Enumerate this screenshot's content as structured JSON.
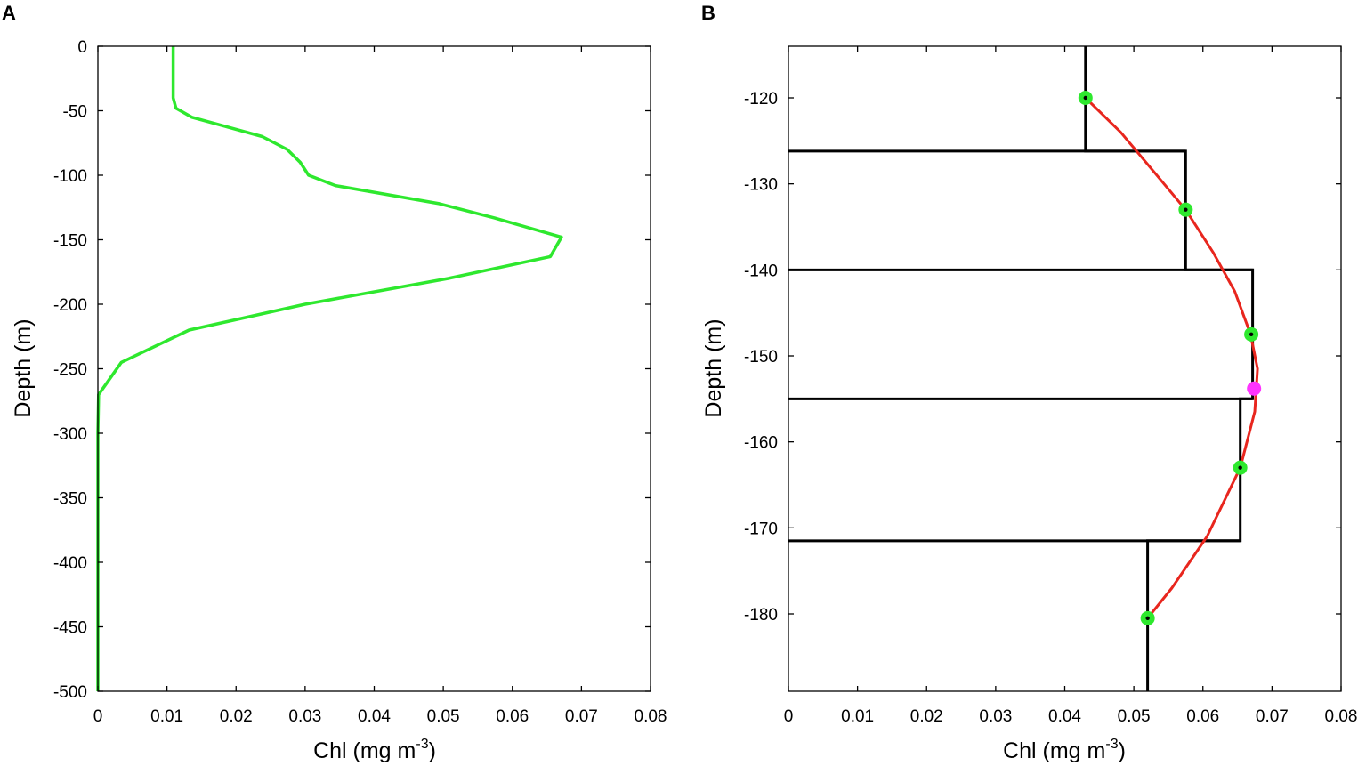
{
  "chart_data": [
    {
      "panel_label": "A",
      "type": "line",
      "xlabel": "Chl (mg m",
      "xlabel_sup": "-3",
      "xlabel_close": ")",
      "ylabel": "Depth (m)",
      "xlim": [
        0,
        0.08
      ],
      "ylim": [
        -500,
        0
      ],
      "xticks": [
        0,
        0.01,
        0.02,
        0.03,
        0.04,
        0.05,
        0.06,
        0.07,
        0.08
      ],
      "xtick_labels": [
        "0",
        "0.01",
        "0.02",
        "0.03",
        "0.04",
        "0.05",
        "0.06",
        "0.07",
        "0.08"
      ],
      "yticks": [
        0,
        -50,
        -100,
        -150,
        -200,
        -250,
        -300,
        -350,
        -400,
        -450,
        -500
      ],
      "ytick_labels": [
        "0",
        "-50",
        "-100",
        "-150",
        "-200",
        "-250",
        "-300",
        "-350",
        "-400",
        "-450",
        "-500"
      ],
      "grid": false,
      "series": [
        {
          "color": "#2ee82e",
          "x": [
            0.0109,
            0.0109,
            0.0113,
            0.0136,
            0.0238,
            0.0274,
            0.0293,
            0.0305,
            0.0344,
            0.0494,
            0.0574,
            0.0671,
            0.0655,
            0.0507,
            0.03,
            0.0132,
            0.0034,
            0.0001,
            0.0,
            0.0
          ],
          "y": [
            0,
            -40,
            -48,
            -55,
            -70,
            -80,
            -90,
            -100,
            -108,
            -122,
            -133,
            -148,
            -163,
            -180,
            -200,
            -220,
            -245,
            -270,
            -300,
            -500
          ]
        }
      ]
    },
    {
      "panel_label": "B",
      "type": "line",
      "xlabel": "Chl (mg m",
      "xlabel_sup": "-3",
      "xlabel_close": ")",
      "ylabel": "Depth (m)",
      "xlim": [
        0,
        0.08
      ],
      "ylim": [
        -189,
        -114
      ],
      "xticks": [
        0,
        0.01,
        0.02,
        0.03,
        0.04,
        0.05,
        0.06,
        0.07,
        0.08
      ],
      "xtick_labels": [
        "0",
        "0.01",
        "0.02",
        "0.03",
        "0.04",
        "0.05",
        "0.06",
        "0.07",
        "0.08"
      ],
      "yticks": [
        -120,
        -130,
        -140,
        -150,
        -160,
        -170,
        -180
      ],
      "ytick_labels": [
        "-120",
        "-130",
        "-140",
        "-150",
        "-160",
        "-170",
        "-180"
      ],
      "grid": false,
      "step_profile": {
        "color": "#000000",
        "x": [
          0.043,
          0.043,
          0.0575,
          0.0575,
          0.0672,
          0.0672,
          0.0654,
          0.0654,
          0.052,
          0.052
        ],
        "y": [
          -114,
          -126.2,
          -126.2,
          -140,
          -140,
          -155,
          -155,
          -171.5,
          -171.5,
          -189
        ]
      },
      "fit_curve": {
        "color": "#e8261e",
        "x": [
          0.043,
          0.0481,
          0.0528,
          0.0575,
          0.0615,
          0.0646,
          0.0669,
          0.0679,
          0.0675,
          0.0654,
          0.0606,
          0.0555,
          0.052
        ],
        "y": [
          -120,
          -124,
          -128.5,
          -133,
          -138,
          -142.5,
          -147.5,
          -151.5,
          -156.5,
          -163,
          -171,
          -177,
          -180.5
        ]
      },
      "sample_points": {
        "color": "#2ee82e",
        "x": [
          0.043,
          0.0575,
          0.067,
          0.0654,
          0.052
        ],
        "y": [
          -120,
          -133,
          -147.5,
          -163,
          -180.5
        ]
      },
      "peak_point": {
        "color": "#ff33ff",
        "x": 0.0674,
        "y": -153.8
      }
    }
  ]
}
